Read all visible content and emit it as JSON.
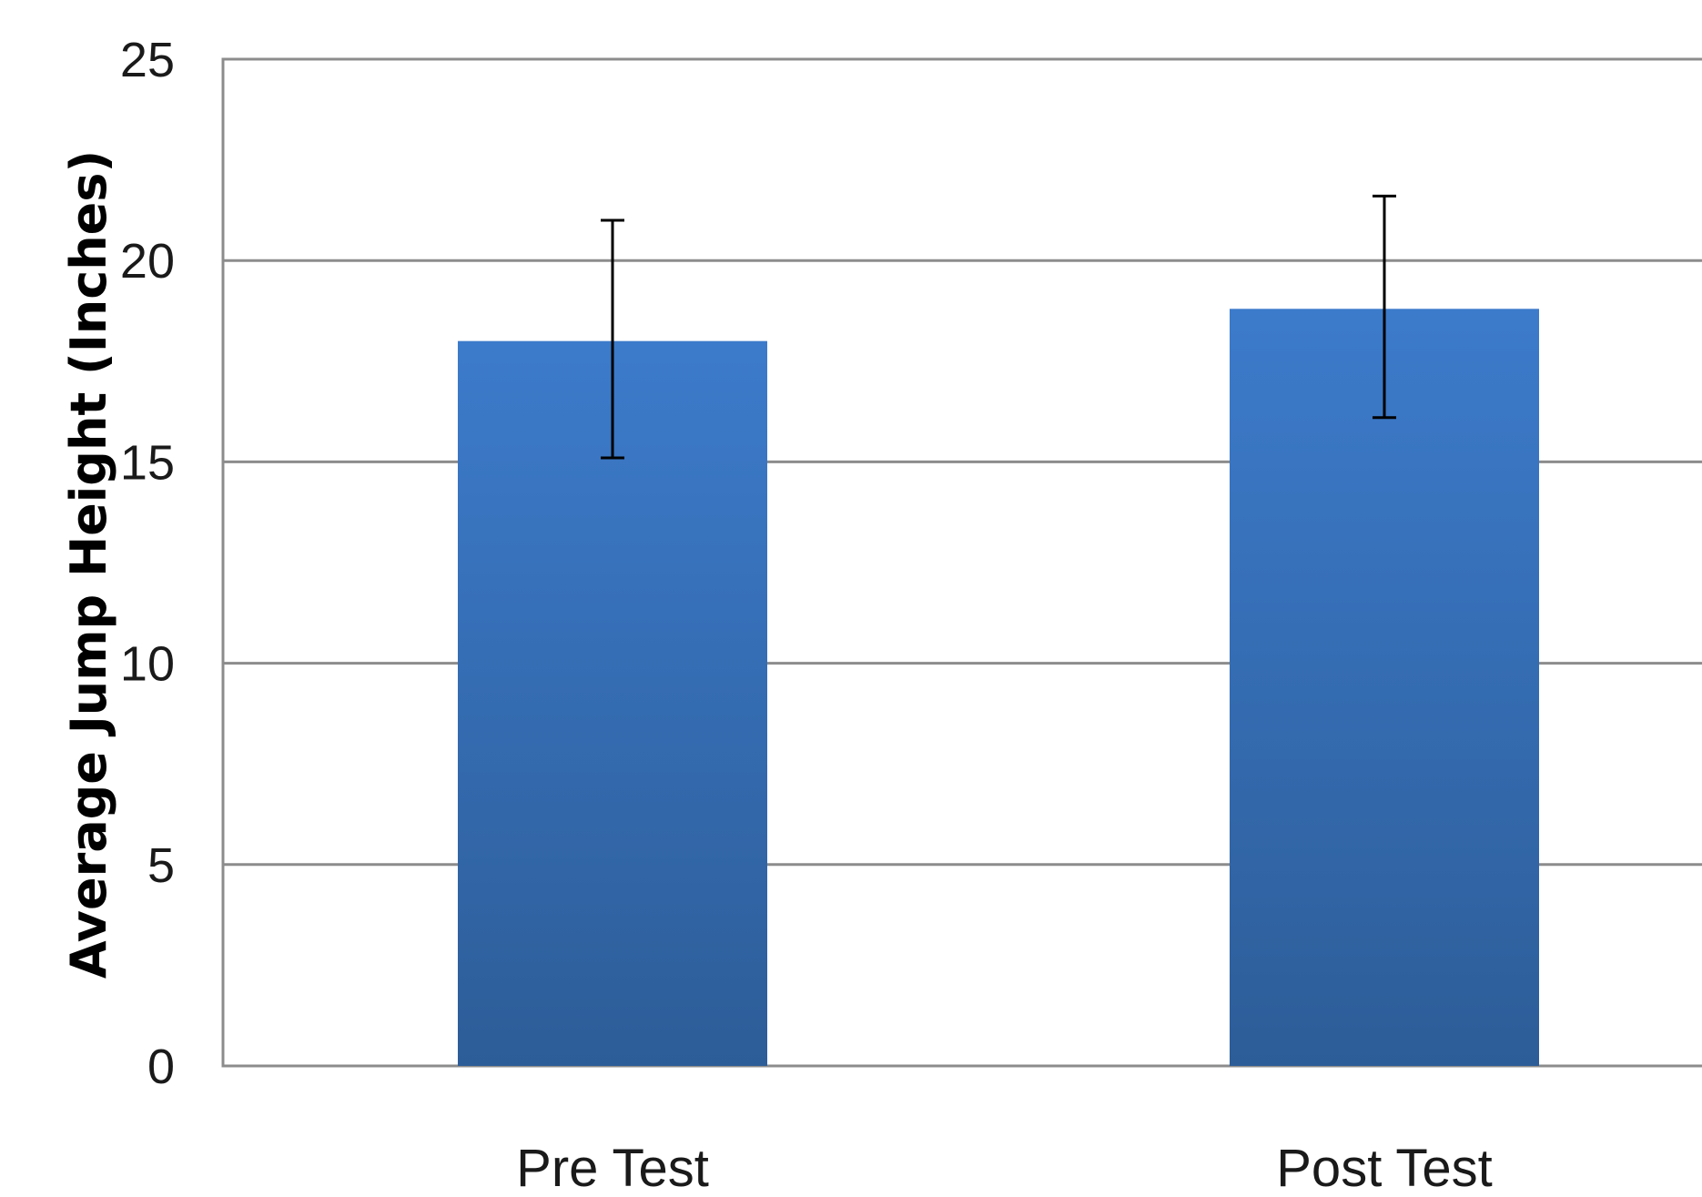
{
  "chart_data": {
    "type": "bar",
    "title": "",
    "xlabel": "",
    "ylabel": "Average Jump Height (Inches)",
    "categories": [
      "Pre Test",
      "Post Test"
    ],
    "values": [
      18.0,
      18.8
    ],
    "error_bars": {
      "upper": [
        21.0,
        21.6
      ],
      "lower": [
        15.1,
        16.1
      ]
    },
    "ylim": [
      0,
      25
    ],
    "yticks": [
      "0",
      "5",
      "10",
      "15",
      "20",
      "25"
    ],
    "grid": true,
    "legend": "none",
    "colors": {
      "bar_top": "#3c7bcb",
      "bar_bottom": "#2d5d98",
      "gridline": "#8c8c8c"
    }
  }
}
